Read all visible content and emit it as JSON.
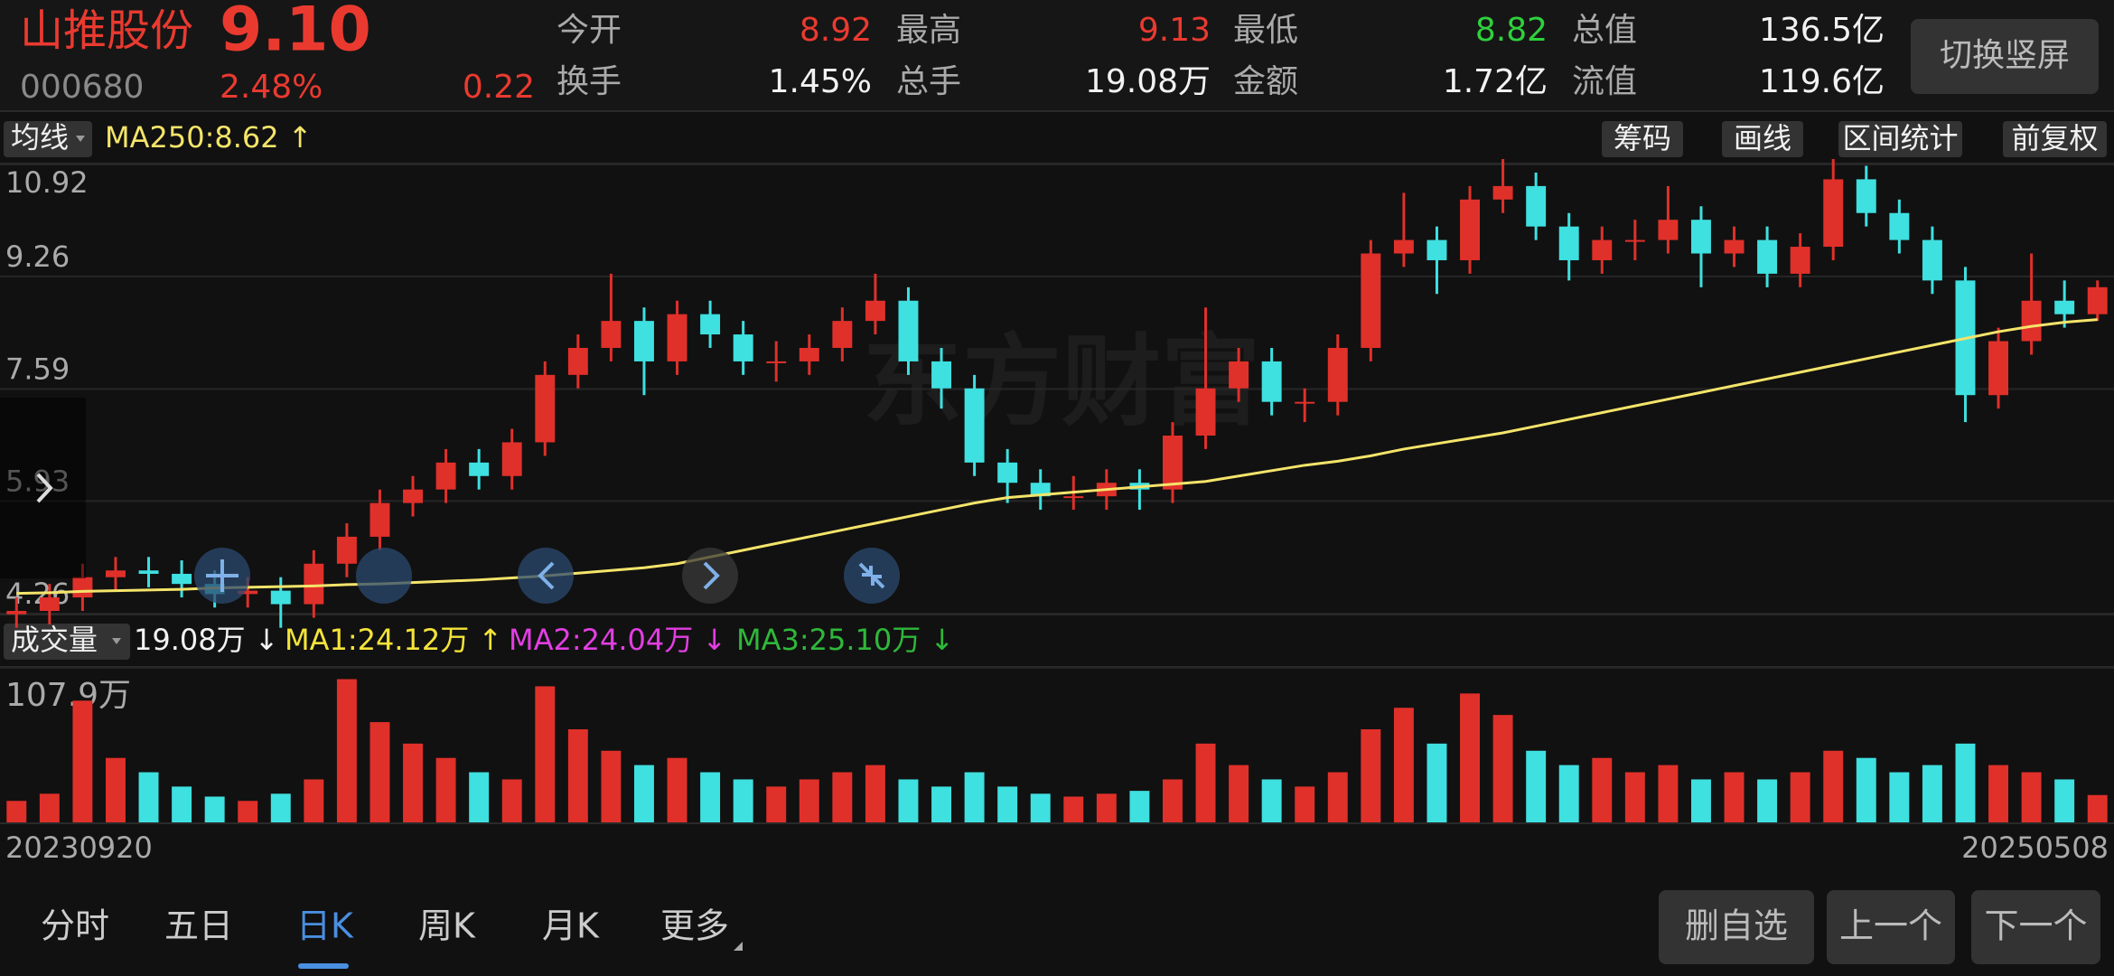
{
  "header": {
    "name": "山推股份",
    "price": "9.10",
    "code": "000680",
    "change_pct": "2.48%",
    "change": "0.22",
    "up_color": "#ea3a30",
    "quotes": [
      [
        {
          "label": "今开",
          "value": "8.92",
          "color": "#ea3a30"
        },
        {
          "label": "最高",
          "value": "9.13",
          "color": "#ea3a30"
        },
        {
          "label": "最低",
          "value": "8.82",
          "color": "#2fd13c"
        },
        {
          "label": "总值",
          "value": "136.5亿",
          "color": "#f2f2f2"
        }
      ],
      [
        {
          "label": "换手",
          "value": "1.45%",
          "color": "#f2f2f2"
        },
        {
          "label": "总手",
          "value": "19.08万",
          "color": "#f2f2f2"
        },
        {
          "label": "金额",
          "value": "1.72亿",
          "color": "#f2f2f2"
        },
        {
          "label": "流值",
          "value": "119.6亿",
          "color": "#f2f2f2"
        }
      ]
    ],
    "button": "切换竖屏"
  },
  "toolbar": {
    "indicator": "均线",
    "ma_label": "MA250:8.62 ↑",
    "buttons": [
      "筹码",
      "画线",
      "区间统计",
      "前复权"
    ]
  },
  "watermark": "东方财富",
  "chart_data": [
    {
      "type": "candlestick",
      "up_color": "#e0302a",
      "down_color": "#3fe0e0",
      "ma_color": "#f4e46a",
      "categories": [
        "20230920",
        null,
        null,
        null,
        null,
        null,
        null,
        null,
        null,
        null,
        null,
        null,
        null,
        null,
        null,
        null,
        null,
        null,
        null,
        null,
        null,
        null,
        null,
        null,
        null,
        null,
        null,
        null,
        null,
        null,
        null,
        null,
        null,
        null,
        null,
        null,
        null,
        null,
        null,
        null,
        null,
        null,
        null,
        null,
        null,
        null,
        null,
        null,
        null,
        null,
        null,
        null,
        null,
        null,
        null,
        null,
        null,
        null,
        null,
        null,
        null,
        null,
        null,
        "20250508"
      ],
      "open": [
        4.25,
        4.3,
        4.5,
        4.8,
        4.9,
        4.85,
        4.7,
        4.55,
        4.6,
        4.4,
        5.0,
        5.4,
        5.9,
        6.1,
        6.5,
        6.3,
        6.8,
        7.8,
        8.2,
        8.6,
        8.0,
        8.7,
        8.4,
        8.0,
        8.0,
        8.2,
        8.6,
        8.9,
        8.0,
        7.6,
        6.5,
        6.2,
        6.0,
        6.0,
        6.2,
        6.1,
        6.9,
        7.6,
        8.0,
        7.4,
        7.4,
        8.2,
        9.6,
        9.8,
        9.5,
        10.4,
        10.6,
        10.0,
        9.5,
        9.8,
        9.8,
        10.1,
        9.6,
        9.8,
        9.3,
        9.7,
        10.7,
        10.2,
        9.8,
        9.2,
        7.5,
        8.3,
        8.9,
        8.7
      ],
      "high": [
        4.5,
        4.7,
        5.0,
        5.1,
        5.1,
        5.05,
        4.9,
        4.8,
        4.8,
        5.2,
        5.6,
        6.1,
        6.3,
        6.7,
        6.7,
        7.0,
        8.0,
        8.4,
        9.3,
        8.8,
        8.9,
        8.9,
        8.6,
        8.3,
        8.4,
        8.8,
        9.3,
        9.1,
        8.2,
        7.8,
        6.7,
        6.4,
        6.3,
        6.4,
        6.4,
        7.1,
        8.8,
        8.2,
        8.2,
        7.6,
        8.4,
        9.8,
        10.5,
        10.0,
        10.6,
        11.0,
        10.8,
        10.2,
        10.0,
        10.1,
        10.6,
        10.3,
        10.0,
        10.0,
        9.9,
        11.0,
        10.9,
        10.4,
        10.0,
        9.4,
        8.5,
        9.6,
        9.2,
        9.2
      ],
      "low": [
        4.05,
        4.1,
        4.3,
        4.6,
        4.65,
        4.5,
        4.35,
        4.35,
        4.05,
        4.2,
        4.8,
        5.2,
        5.7,
        5.9,
        6.1,
        6.1,
        6.6,
        7.6,
        8.0,
        7.5,
        7.8,
        8.2,
        7.8,
        7.7,
        7.8,
        8.0,
        8.4,
        7.8,
        7.3,
        6.3,
        5.9,
        5.8,
        5.8,
        5.8,
        5.8,
        5.9,
        6.7,
        7.4,
        7.2,
        7.1,
        7.2,
        8.0,
        9.4,
        9.0,
        9.3,
        10.2,
        9.8,
        9.2,
        9.3,
        9.5,
        9.6,
        9.1,
        9.4,
        9.1,
        9.1,
        9.5,
        10.0,
        9.6,
        9.0,
        7.1,
        7.3,
        8.1,
        8.5,
        8.6
      ],
      "close": [
        4.3,
        4.5,
        4.8,
        4.9,
        4.85,
        4.7,
        4.55,
        4.6,
        4.4,
        5.0,
        5.4,
        5.9,
        6.1,
        6.5,
        6.3,
        6.8,
        7.8,
        8.2,
        8.6,
        8.0,
        8.7,
        8.4,
        8.0,
        8.0,
        8.2,
        8.6,
        8.9,
        8.0,
        7.6,
        6.5,
        6.2,
        6.0,
        6.0,
        6.2,
        6.1,
        6.9,
        7.6,
        8.0,
        7.4,
        7.4,
        8.2,
        9.6,
        9.8,
        9.5,
        10.4,
        10.6,
        10.0,
        9.5,
        9.8,
        9.8,
        10.1,
        9.6,
        9.8,
        9.3,
        9.7,
        10.7,
        10.2,
        9.8,
        9.2,
        7.5,
        8.3,
        8.9,
        8.7,
        9.1
      ],
      "ma250": [
        4.56,
        4.57,
        4.59,
        4.6,
        4.61,
        4.62,
        4.64,
        4.65,
        4.66,
        4.67,
        4.69,
        4.7,
        4.72,
        4.74,
        4.76,
        4.79,
        4.82,
        4.86,
        4.9,
        4.94,
        5.0,
        5.1,
        5.2,
        5.3,
        5.4,
        5.5,
        5.6,
        5.7,
        5.8,
        5.9,
        5.98,
        6.02,
        6.06,
        6.1,
        6.14,
        6.18,
        6.22,
        6.3,
        6.38,
        6.46,
        6.52,
        6.6,
        6.7,
        6.78,
        6.86,
        6.94,
        7.04,
        7.14,
        7.24,
        7.34,
        7.44,
        7.54,
        7.64,
        7.74,
        7.84,
        7.94,
        8.04,
        8.14,
        8.24,
        8.34,
        8.44,
        8.52,
        8.58,
        8.62
      ],
      "ylim": [
        4.26,
        10.92
      ],
      "yticks": [
        4.26,
        5.93,
        7.59,
        9.26,
        10.92
      ],
      "grid": true
    },
    {
      "type": "bar",
      "title": "成交量",
      "current": "19.08万 ↓",
      "ma": [
        {
          "label": "MA1:24.12万 ↑",
          "color": "#f4e43a"
        },
        {
          "label": "MA2:24.04万 ↓",
          "color": "#e23ee2"
        },
        {
          "label": "MA3:25.10万 ↓",
          "color": "#2fb83a"
        }
      ],
      "values": [
        15,
        20,
        85,
        45,
        35,
        25,
        18,
        15,
        20,
        30,
        100,
        70,
        55,
        45,
        35,
        30,
        95,
        65,
        50,
        40,
        45,
        35,
        30,
        25,
        30,
        35,
        40,
        30,
        25,
        35,
        25,
        20,
        18,
        20,
        22,
        30,
        55,
        40,
        30,
        25,
        35,
        65,
        80,
        55,
        90,
        75,
        50,
        40,
        45,
        35,
        40,
        30,
        35,
        30,
        35,
        50,
        45,
        35,
        40,
        55,
        40,
        35,
        30,
        19.08
      ],
      "ylim": [
        0,
        107.9
      ],
      "yticks": [
        {
          "value": 107.9,
          "label": "107.9万"
        }
      ]
    }
  ],
  "tabs": [
    "分时",
    "五日",
    "日K",
    "周K",
    "月K",
    "更多"
  ],
  "selected_tab": 2,
  "actions": [
    "删自选",
    "上一个",
    "下一个"
  ]
}
